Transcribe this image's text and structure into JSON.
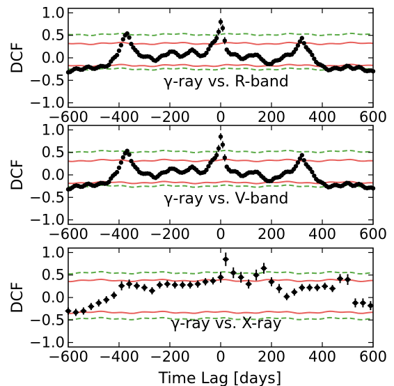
{
  "figure": {
    "xlabel": "Time Lag [days]"
  },
  "chart_data": [
    {
      "type": "scatter",
      "title": "",
      "annotation": "γ-ray vs. R-band",
      "xlabel": "",
      "ylabel": "DCF",
      "xlim": [
        -600,
        600
      ],
      "ylim": [
        -1.1,
        1.1
      ],
      "xticks": [
        "−600",
        "−400",
        "−200",
        "0",
        "200",
        "400",
        "600"
      ],
      "yticks": [
        "−1.0",
        "−0.5",
        "0.0",
        "0.5",
        "1.0"
      ],
      "grid": false,
      "colors": {
        "points": "#000000",
        "sigma2": "#e8605c",
        "sigma3": "#5aaa46"
      },
      "sig_pos2": 0.32,
      "sig_neg2": -0.17,
      "sig_pos3": 0.52,
      "sig_neg3": -0.25,
      "anchors_x": [
        -600,
        -560,
        -520,
        -480,
        -440,
        -410,
        -395,
        -380,
        -365,
        -350,
        -335,
        -320,
        -300,
        -280,
        -260,
        -240,
        -220,
        -200,
        -180,
        -160,
        -140,
        -125,
        -115,
        -100,
        -90,
        -80,
        -60,
        -40,
        -20,
        -10,
        0,
        10,
        20,
        40,
        60,
        80,
        100,
        140,
        160,
        180,
        200,
        220,
        240,
        260,
        280,
        300,
        320,
        340,
        360,
        380,
        400,
        420,
        450,
        480,
        500,
        520,
        540,
        560,
        580,
        600
      ],
      "anchors_y": [
        -0.3,
        -0.25,
        -0.22,
        -0.22,
        -0.15,
        0.05,
        0.25,
        0.45,
        0.55,
        0.3,
        0.15,
        0.05,
        0.05,
        0.0,
        -0.05,
        0.0,
        0.05,
        0.15,
        0.1,
        0.05,
        0.05,
        0.1,
        0.22,
        0.15,
        0.05,
        0.02,
        0.1,
        0.25,
        0.4,
        0.55,
        0.8,
        0.6,
        0.2,
        0.1,
        0.05,
        0.0,
        0.0,
        0.1,
        -0.05,
        -0.1,
        -0.15,
        -0.05,
        0.0,
        0.05,
        0.1,
        0.2,
        0.45,
        0.2,
        0.05,
        -0.1,
        -0.2,
        -0.25,
        -0.25,
        -0.22,
        -0.2,
        -0.22,
        -0.22,
        -0.25,
        -0.28,
        -0.32
      ],
      "step": 8,
      "err": 0.02
    },
    {
      "type": "scatter",
      "title": "",
      "annotation": "γ-ray vs. V-band",
      "xlabel": "",
      "ylabel": "DCF",
      "xlim": [
        -600,
        600
      ],
      "ylim": [
        -1.1,
        1.1
      ],
      "xticks": [
        "−600",
        "−400",
        "−200",
        "0",
        "200",
        "400",
        "600"
      ],
      "yticks": [
        "−1.0",
        "−0.5",
        "0.0",
        "0.5",
        "1.0"
      ],
      "grid": false,
      "colors": {
        "points": "#000000",
        "sigma2": "#e8605c",
        "sigma3": "#5aaa46"
      },
      "sig_pos2": 0.32,
      "sig_neg2": -0.17,
      "sig_pos3": 0.52,
      "sig_neg3": -0.25,
      "anchors_x": [
        -600,
        -560,
        -520,
        -480,
        -440,
        -410,
        -395,
        -380,
        -365,
        -350,
        -335,
        -320,
        -300,
        -280,
        -260,
        -240,
        -220,
        -200,
        -180,
        -160,
        -140,
        -125,
        -115,
        -100,
        -90,
        -80,
        -60,
        -40,
        -20,
        -10,
        0,
        10,
        20,
        40,
        60,
        80,
        100,
        140,
        160,
        180,
        200,
        220,
        240,
        260,
        280,
        300,
        320,
        340,
        360,
        380,
        400,
        420,
        450,
        480,
        500,
        520,
        540,
        560,
        580,
        600
      ],
      "anchors_y": [
        -0.3,
        -0.25,
        -0.22,
        -0.22,
        -0.15,
        0.05,
        0.25,
        0.42,
        0.55,
        0.3,
        0.15,
        0.05,
        0.05,
        0.0,
        -0.05,
        0.0,
        0.05,
        0.15,
        0.1,
        0.08,
        0.05,
        0.1,
        0.22,
        0.15,
        0.05,
        0.02,
        0.1,
        0.25,
        0.4,
        0.55,
        0.85,
        0.6,
        0.2,
        0.1,
        0.05,
        0.0,
        0.0,
        0.1,
        -0.05,
        -0.1,
        -0.15,
        -0.05,
        0.0,
        0.05,
        0.1,
        0.2,
        0.45,
        0.2,
        0.05,
        -0.1,
        -0.2,
        -0.25,
        -0.25,
        -0.22,
        -0.2,
        -0.22,
        -0.22,
        -0.25,
        -0.28,
        -0.32
      ],
      "step": 8,
      "err": 0.02
    },
    {
      "type": "scatter",
      "title": "",
      "annotation": "γ-ray vs. X-ray",
      "xlabel": "Time Lag [days]",
      "ylabel": "DCF",
      "xlim": [
        -600,
        600
      ],
      "ylim": [
        -1.1,
        1.1
      ],
      "xticks": [
        "−600",
        "−400",
        "−200",
        "0",
        "200",
        "400",
        "600"
      ],
      "yticks": [
        "−1.0",
        "−0.5",
        "0.0",
        "0.5",
        "1.0"
      ],
      "grid": false,
      "colors": {
        "points": "#000000",
        "sigma2": "#e8605c",
        "sigma3": "#5aaa46"
      },
      "sig_pos2": 0.38,
      "sig_neg2": -0.33,
      "sig_pos3": 0.55,
      "sig_neg3": -0.47,
      "x": [
        -600,
        -570,
        -540,
        -510,
        -480,
        -450,
        -420,
        -390,
        -360,
        -330,
        -300,
        -270,
        -240,
        -210,
        -180,
        -150,
        -120,
        -90,
        -60,
        -30,
        0,
        20,
        50,
        80,
        110,
        140,
        170,
        200,
        230,
        260,
        290,
        320,
        350,
        380,
        410,
        440,
        470,
        500,
        530,
        560,
        590
      ],
      "y": [
        -0.3,
        -0.33,
        -0.3,
        -0.2,
        -0.12,
        -0.05,
        0.05,
        0.26,
        0.3,
        0.26,
        0.22,
        0.15,
        0.28,
        0.3,
        0.28,
        0.28,
        0.28,
        0.3,
        0.35,
        0.37,
        0.45,
        0.85,
        0.55,
        0.45,
        0.3,
        0.5,
        0.65,
        0.35,
        0.2,
        0.02,
        0.12,
        0.22,
        0.22,
        0.22,
        0.25,
        0.2,
        0.42,
        0.4,
        -0.12,
        -0.12,
        -0.18
      ],
      "yerr": [
        0.08,
        0.08,
        0.08,
        0.08,
        0.08,
        0.08,
        0.08,
        0.1,
        0.1,
        0.08,
        0.08,
        0.08,
        0.08,
        0.08,
        0.08,
        0.08,
        0.08,
        0.08,
        0.08,
        0.08,
        0.12,
        0.15,
        0.12,
        0.12,
        0.1,
        0.12,
        0.12,
        0.1,
        0.1,
        0.08,
        0.08,
        0.08,
        0.08,
        0.08,
        0.08,
        0.08,
        0.1,
        0.12,
        0.1,
        0.1,
        0.1
      ],
      "xerr": 12
    }
  ]
}
